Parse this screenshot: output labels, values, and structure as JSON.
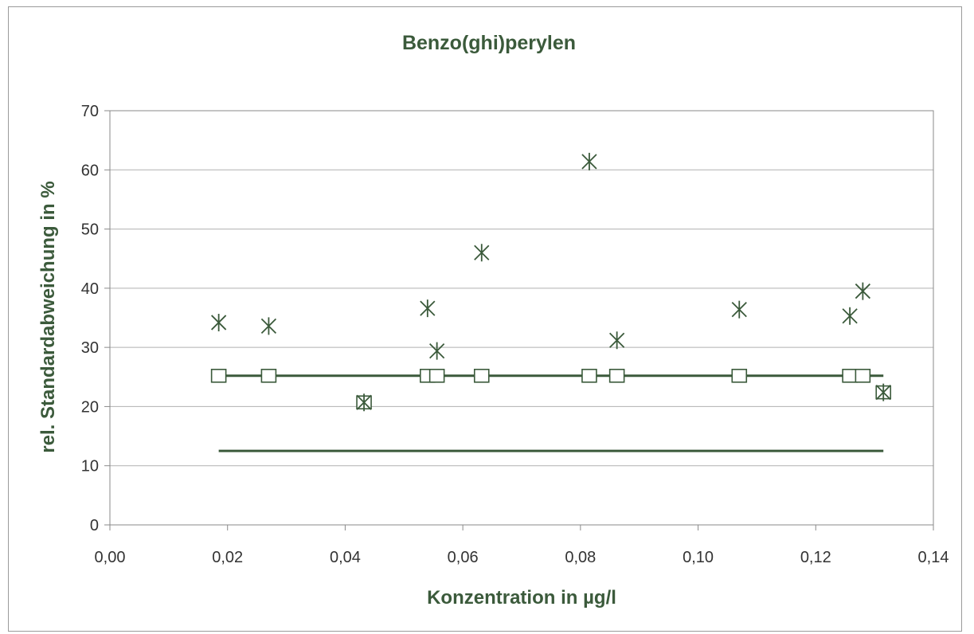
{
  "chart_data": {
    "type": "scatter",
    "title": "Benzo(ghi)perylen",
    "xlabel": "Konzentration in µg/l",
    "ylabel": "rel. Standardabweichung in %",
    "xlim": [
      0,
      0.14
    ],
    "ylim": [
      0,
      70
    ],
    "x_ticks": [
      0,
      0.02,
      0.04,
      0.06,
      0.08,
      0.1,
      0.12,
      0.14
    ],
    "x_tick_labels": [
      "0,00",
      "0,02",
      "0,04",
      "0,06",
      "0,08",
      "0,10",
      "0,12",
      "0,14"
    ],
    "y_ticks": [
      0,
      10,
      20,
      30,
      40,
      50,
      60,
      70
    ],
    "y_tick_labels": [
      "0",
      "10",
      "20",
      "30",
      "40",
      "50",
      "60",
      "70"
    ],
    "grid": "horizontal",
    "legend": "none",
    "colors": {
      "marker": "#3b5a3b",
      "line": "#3b5a3b",
      "grid": "#b0b0b0",
      "axis": "#8a8a8a",
      "plot_border": "#8a8a8a"
    },
    "series": [
      {
        "marker": "asterisk",
        "x": [
          0.0185,
          0.027,
          0.0432,
          0.054,
          0.0556,
          0.0632,
          0.0815,
          0.0862,
          0.107,
          0.1258,
          0.128,
          0.1315
        ],
        "y": [
          34.2,
          33.6,
          20.7,
          36.6,
          29.4,
          46.0,
          61.4,
          31.2,
          36.4,
          35.3,
          39.5,
          22.4
        ]
      },
      {
        "marker": "square",
        "x": [
          0.0185,
          0.027,
          0.0432,
          0.054,
          0.0556,
          0.0632,
          0.0815,
          0.0862,
          0.107,
          0.1258,
          0.128,
          0.1315
        ],
        "y": [
          25.2,
          25.2,
          20.7,
          25.2,
          25.2,
          25.2,
          25.2,
          25.2,
          25.2,
          25.2,
          25.2,
          22.4
        ]
      },
      {
        "marker": "line",
        "x": [
          0.0185,
          0.1315
        ],
        "y": [
          25.2,
          25.2
        ]
      },
      {
        "marker": "line",
        "x": [
          0.0185,
          0.1315
        ],
        "y": [
          12.5,
          12.5
        ]
      }
    ]
  }
}
